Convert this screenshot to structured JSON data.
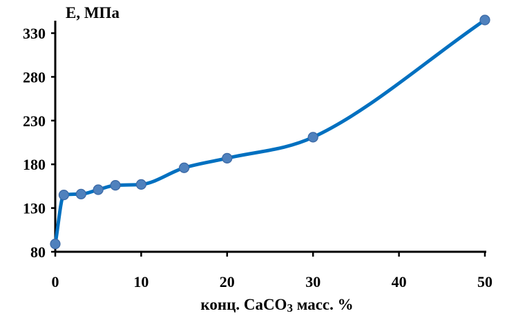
{
  "chart_data": {
    "type": "line",
    "title": "",
    "xlabel": "конц. CaCO3 масс. %",
    "xlabel_parts": {
      "before": "конц. CaCO",
      "subscript": "3",
      "after": " масс. %"
    },
    "ylabel": "E, МПа",
    "x": [
      0,
      1,
      3,
      5,
      7,
      10,
      15,
      20,
      30,
      50
    ],
    "series": [
      {
        "values": [
          89,
          145,
          146,
          151,
          156,
          157,
          176,
          187,
          211,
          345
        ]
      }
    ],
    "xlim": [
      0,
      50
    ],
    "ylim": [
      80,
      360
    ],
    "xticks": [
      0,
      10,
      20,
      30,
      40,
      50
    ],
    "yticks": [
      80,
      130,
      180,
      230,
      280,
      330
    ],
    "grid": false,
    "smooth": true,
    "line_color": "#0070c0",
    "marker_color": "#4f81bd"
  }
}
